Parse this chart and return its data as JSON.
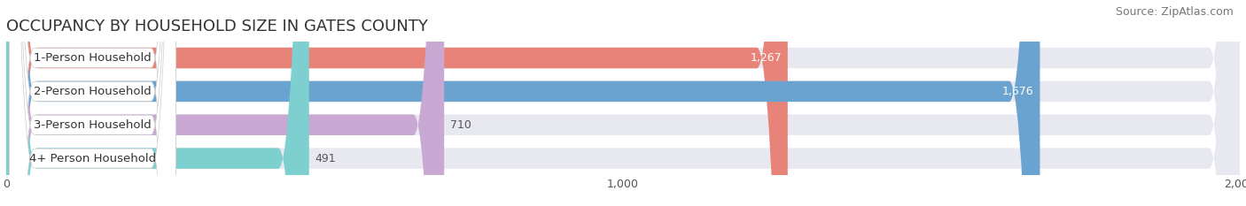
{
  "title": "OCCUPANCY BY HOUSEHOLD SIZE IN GATES COUNTY",
  "source": "Source: ZipAtlas.com",
  "categories": [
    "1-Person Household",
    "2-Person Household",
    "3-Person Household",
    "4+ Person Household"
  ],
  "values": [
    1267,
    1676,
    710,
    491
  ],
  "bar_colors": [
    "#e8837a",
    "#6ba3d0",
    "#c9a8d4",
    "#7ecfcf"
  ],
  "label_colors": [
    "white",
    "white",
    "#555555",
    "#555555"
  ],
  "bar_bg_color": "#e8e8f0",
  "background_color": "#ffffff",
  "xlim": [
    0,
    2000
  ],
  "xticks": [
    0,
    1000,
    2000
  ],
  "title_fontsize": 13,
  "source_fontsize": 9,
  "bar_label_fontsize": 9,
  "cat_label_fontsize": 9.5,
  "bar_height": 0.62,
  "x_axis_offset": 0
}
